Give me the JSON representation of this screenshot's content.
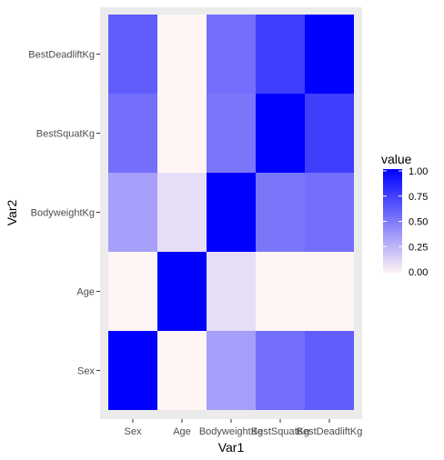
{
  "chart_data": {
    "type": "heatmap",
    "x_categories": [
      "Sex",
      "Age",
      "BodyweightKg",
      "BestSquatKg",
      "BestDeadliftKg"
    ],
    "y_categories": [
      "Sex",
      "Age",
      "BodyweightKg",
      "BestSquatKg",
      "BestDeadliftKg"
    ],
    "xlabel": "Var1",
    "ylabel": "Var2",
    "legend": {
      "title": "value",
      "ticks": [
        "0.00",
        "0.25",
        "0.50",
        "0.75",
        "1.00"
      ],
      "tick_values": [
        0,
        0.25,
        0.5,
        0.75,
        1
      ],
      "low_color": "#fff5f5",
      "high_color": "#0000ff",
      "position": "right"
    },
    "colors": {
      "panel_background": "#ebebeb",
      "tick_text": "#4d4d4d",
      "text": "#000000"
    },
    "cells": [
      {
        "x": "Sex",
        "y": "Sex",
        "value": 1.0
      },
      {
        "x": "Sex",
        "y": "Age",
        "value": 0.0
      },
      {
        "x": "Sex",
        "y": "BodyweightKg",
        "value": 0.35
      },
      {
        "x": "Sex",
        "y": "BestSquatKg",
        "value": 0.55
      },
      {
        "x": "Sex",
        "y": "BestDeadliftKg",
        "value": 0.62
      },
      {
        "x": "Age",
        "y": "Sex",
        "value": 0.0
      },
      {
        "x": "Age",
        "y": "Age",
        "value": 1.0
      },
      {
        "x": "Age",
        "y": "BodyweightKg",
        "value": 0.1
      },
      {
        "x": "Age",
        "y": "BestSquatKg",
        "value": 0.0
      },
      {
        "x": "Age",
        "y": "BestDeadliftKg",
        "value": 0.0
      },
      {
        "x": "BodyweightKg",
        "y": "Sex",
        "value": 0.35
      },
      {
        "x": "BodyweightKg",
        "y": "Age",
        "value": 0.1
      },
      {
        "x": "BodyweightKg",
        "y": "BodyweightKg",
        "value": 1.0
      },
      {
        "x": "BodyweightKg",
        "y": "BestSquatKg",
        "value": 0.52
      },
      {
        "x": "BodyweightKg",
        "y": "BestDeadliftKg",
        "value": 0.55
      },
      {
        "x": "BestSquatKg",
        "y": "Sex",
        "value": 0.55
      },
      {
        "x": "BestSquatKg",
        "y": "Age",
        "value": 0.0
      },
      {
        "x": "BestSquatKg",
        "y": "BodyweightKg",
        "value": 0.52
      },
      {
        "x": "BestSquatKg",
        "y": "BestSquatKg",
        "value": 1.0
      },
      {
        "x": "BestSquatKg",
        "y": "BestDeadliftKg",
        "value": 0.75
      },
      {
        "x": "BestDeadliftKg",
        "y": "Sex",
        "value": 0.62
      },
      {
        "x": "BestDeadliftKg",
        "y": "Age",
        "value": 0.0
      },
      {
        "x": "BestDeadliftKg",
        "y": "BodyweightKg",
        "value": 0.55
      },
      {
        "x": "BestDeadliftKg",
        "y": "BestSquatKg",
        "value": 0.75
      },
      {
        "x": "BestDeadliftKg",
        "y": "BestDeadliftKg",
        "value": 1.0
      }
    ]
  }
}
